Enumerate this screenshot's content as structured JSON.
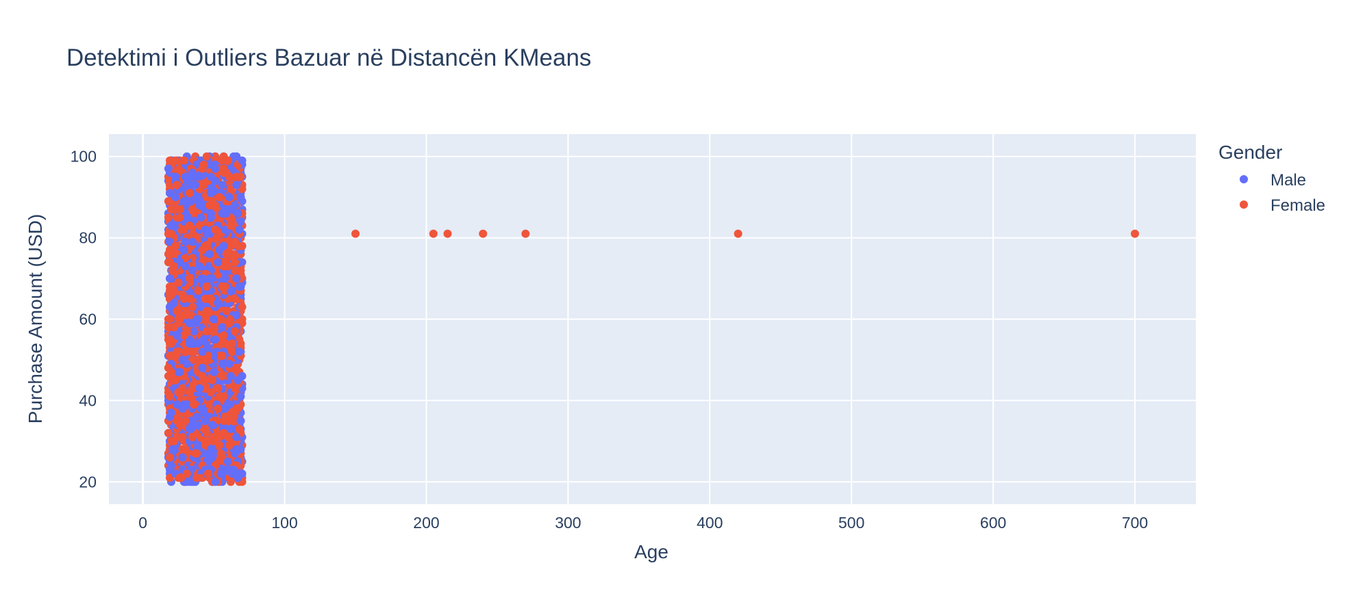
{
  "chart_data": {
    "type": "scatter",
    "title": "Detektimi i Outliers Bazuar në Distancën KMeans",
    "xlabel": "Age",
    "ylabel": "Purchase Amount (USD)",
    "xlim": [
      -24,
      743
    ],
    "ylim": [
      14.5,
      105.5
    ],
    "x_ticks": [
      0,
      100,
      200,
      300,
      400,
      500,
      600,
      700
    ],
    "y_ticks": [
      20,
      40,
      60,
      80,
      100
    ],
    "grid": true,
    "legend": {
      "title": "Gender",
      "placement": "top-right"
    },
    "dense_region": {
      "x_range": [
        18,
        70
      ],
      "y_range": [
        20,
        100
      ]
    },
    "series": [
      {
        "name": "Male",
        "color": "#636efa",
        "description_points": "dense cloud of customers aged 18–70 with purchases 20–100",
        "x": [],
        "y": []
      },
      {
        "name": "Female",
        "color": "#ef553b",
        "outliers": {
          "x": [
            150,
            205,
            215,
            240,
            270,
            420,
            700
          ],
          "y": [
            81,
            81,
            81,
            81,
            81,
            81,
            81
          ]
        }
      }
    ],
    "colors": {
      "plot_bg": "#e5ecf6",
      "grid": "#ffffff",
      "text": "#2a3f5f"
    }
  }
}
